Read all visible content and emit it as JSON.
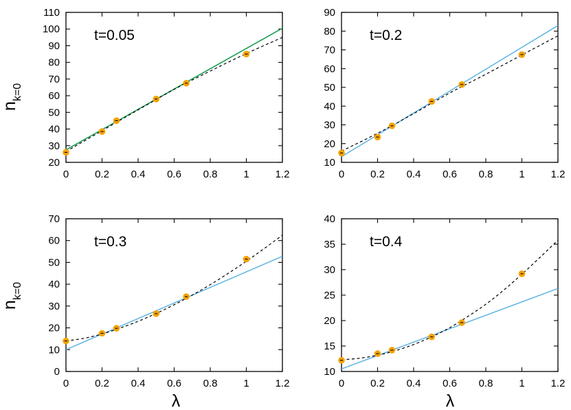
{
  "colors": {
    "points": "#f5a100",
    "fit_green": "#0d9a4e",
    "fit_blue": "#5fb4e2",
    "dashed": "#000000",
    "frame": "#000000"
  },
  "labels": {
    "ylabel_main": "n",
    "ylabel_sub": "k=0",
    "xlabel": "λ"
  },
  "chart_data": [
    {
      "type": "scatter",
      "annotation": "t=0.05",
      "ylabel": "nk=0",
      "xlabel": "",
      "xlim": [
        0,
        1.2
      ],
      "ylim": [
        20,
        110
      ],
      "xticks": [
        0,
        0.2,
        0.4,
        0.6,
        0.8,
        1,
        1.2
      ],
      "xtick_labels": [
        "0",
        "0.2",
        "0.4",
        "0.6",
        "0.8",
        "1",
        "1.2"
      ],
      "yticks": [
        20,
        30,
        40,
        50,
        60,
        70,
        80,
        90,
        100,
        110
      ],
      "ytick_labels": [
        "20",
        "30",
        "40",
        "50",
        "60",
        "70",
        "80",
        "90",
        "100",
        "110"
      ],
      "grid": false,
      "points": {
        "x": [
          0,
          0.2,
          0.28,
          0.5,
          0.667,
          1
        ],
        "y": [
          26,
          38.5,
          45,
          58,
          67.5,
          85
        ]
      },
      "fit_line": {
        "color": "#0d9a4e",
        "x": [
          0,
          1.2
        ],
        "y": [
          27.5,
          100.5
        ]
      },
      "trend_line": {
        "x": [
          0,
          0.2,
          0.4,
          0.6,
          0.8,
          1,
          1.2
        ],
        "y": [
          26.5,
          39,
          51.5,
          63.8,
          74.8,
          85.3,
          95
        ]
      }
    },
    {
      "type": "scatter",
      "annotation": "t=0.2",
      "ylabel": "",
      "xlabel": "",
      "xlim": [
        0,
        1.2
      ],
      "ylim": [
        10,
        90
      ],
      "xticks": [
        0,
        0.2,
        0.4,
        0.6,
        0.8,
        1,
        1.2
      ],
      "xtick_labels": [
        "0",
        "0.2",
        "0.4",
        "0.6",
        "0.8",
        "1",
        "1.2"
      ],
      "yticks": [
        10,
        20,
        30,
        40,
        50,
        60,
        70,
        80,
        90
      ],
      "ytick_labels": [
        "10",
        "20",
        "30",
        "40",
        "50",
        "60",
        "70",
        "80",
        "90"
      ],
      "grid": false,
      "points": {
        "x": [
          0,
          0.2,
          0.28,
          0.5,
          0.667,
          1
        ],
        "y": [
          15,
          23.5,
          29.5,
          42.5,
          51.5,
          67.5
        ]
      },
      "fit_line": {
        "color": "#5fb4e2",
        "x": [
          0,
          1.2
        ],
        "y": [
          13,
          83
        ]
      },
      "trend_line": {
        "x": [
          0,
          0.2,
          0.4,
          0.6,
          0.8,
          1,
          1.2
        ],
        "y": [
          16,
          25.5,
          36,
          47,
          57,
          67.3,
          77.5
        ]
      }
    },
    {
      "type": "scatter",
      "annotation": "t=0.3",
      "ylabel": "nk=0",
      "xlabel": "λ",
      "xlim": [
        0,
        1.2
      ],
      "ylim": [
        0,
        70
      ],
      "xticks": [
        0,
        0.2,
        0.4,
        0.6,
        0.8,
        1,
        1.2
      ],
      "xtick_labels": [
        "0",
        "0.2",
        "0.4",
        "0.6",
        "0.8",
        "1",
        "1.2"
      ],
      "yticks": [
        0,
        10,
        20,
        30,
        40,
        50,
        60,
        70
      ],
      "ytick_labels": [
        "0",
        "10",
        "20",
        "30",
        "40",
        "50",
        "60",
        "70"
      ],
      "grid": false,
      "points": {
        "x": [
          0,
          0.2,
          0.28,
          0.5,
          0.667,
          1
        ],
        "y": [
          14,
          17.5,
          19.8,
          26.5,
          34.3,
          51.5
        ]
      },
      "fit_line": {
        "color": "#5fb4e2",
        "x": [
          0,
          1.2
        ],
        "y": [
          10,
          52.8
        ]
      },
      "trend_line": {
        "x": [
          0,
          0.1,
          0.2,
          0.3,
          0.4,
          0.5,
          0.6,
          0.7,
          0.8,
          0.9,
          1,
          1.1,
          1.2
        ],
        "y": [
          14,
          15.2,
          17.2,
          19.9,
          23,
          26.6,
          30.6,
          35,
          39.8,
          45,
          50.5,
          56.4,
          62.5
        ]
      }
    },
    {
      "type": "scatter",
      "annotation": "t=0.4",
      "ylabel": "",
      "xlabel": "λ",
      "xlim": [
        0,
        1.2
      ],
      "ylim": [
        10,
        40
      ],
      "xticks": [
        0,
        0.2,
        0.4,
        0.6,
        0.8,
        1,
        1.2
      ],
      "xtick_labels": [
        "0",
        "0.2",
        "0.4",
        "0.6",
        "0.8",
        "1",
        "1.2"
      ],
      "yticks": [
        10,
        15,
        20,
        25,
        30,
        35,
        40
      ],
      "ytick_labels": [
        "10",
        "15",
        "20",
        "25",
        "30",
        "35",
        "40"
      ],
      "grid": false,
      "points": {
        "x": [
          0,
          0.2,
          0.28,
          0.5,
          0.667,
          1
        ],
        "y": [
          12.2,
          13.5,
          14.2,
          16.8,
          19.6,
          29.2
        ]
      },
      "fit_line": {
        "color": "#5fb4e2",
        "x": [
          0,
          1.2
        ],
        "y": [
          10.5,
          26.3
        ]
      },
      "trend_line": {
        "x": [
          0,
          0.1,
          0.2,
          0.3,
          0.4,
          0.5,
          0.6,
          0.7,
          0.8,
          0.9,
          1,
          1.1,
          1.2
        ],
        "y": [
          12.3,
          12.6,
          13.2,
          14.1,
          15.3,
          16.8,
          18.6,
          20.8,
          23.2,
          26,
          29.1,
          32.4,
          35.8
        ]
      }
    }
  ]
}
